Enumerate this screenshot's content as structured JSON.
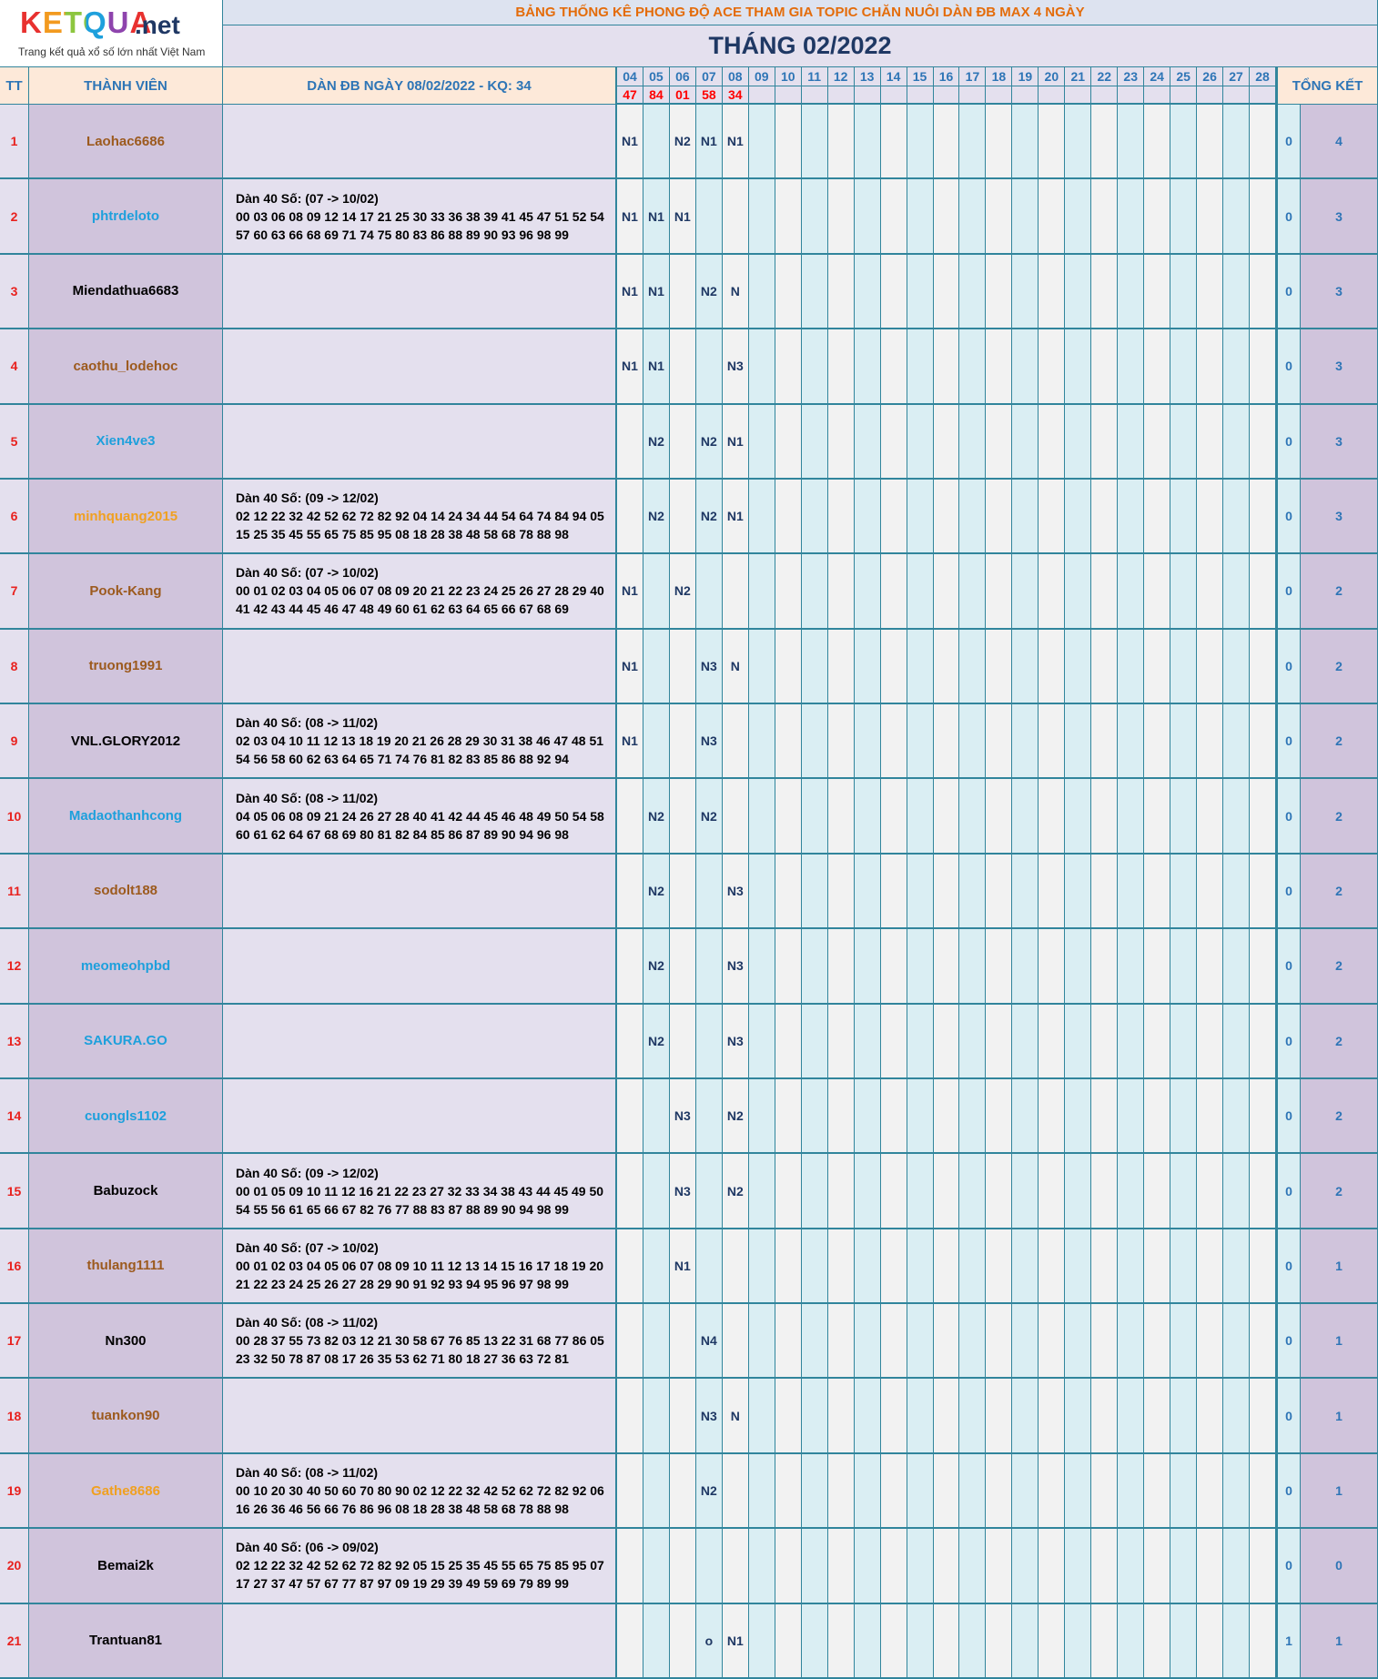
{
  "header": {
    "logo_brand": "KETQUA",
    "logo_suffix": ".net",
    "logo_tagline": "Trang kết quả xổ số lớn nhất Việt Nam",
    "title": "BẢNG THỐNG KÊ PHONG ĐỘ ACE THAM GIA TOPIC CHĂN NUÔI DÀN ĐB MAX 4 NGÀY",
    "month": "THÁNG 02/2022"
  },
  "table": {
    "columns": {
      "tt": "TT",
      "member": "THÀNH VIÊN",
      "dan": "DÀN ĐB NGÀY 08/02/2022 - KQ: 34",
      "total": "TỔNG KẾT"
    },
    "days": [
      "04",
      "05",
      "06",
      "07",
      "08",
      "09",
      "10",
      "11",
      "12",
      "13",
      "14",
      "15",
      "16",
      "17",
      "18",
      "19",
      "20",
      "21",
      "22",
      "23",
      "24",
      "25",
      "26",
      "27",
      "28"
    ],
    "results": [
      "47",
      "84",
      "01",
      "58",
      "34"
    ],
    "rows": [
      {
        "tt": 1,
        "member": "Laohac6686",
        "color": "#9c5a1e",
        "dan": null,
        "marks": [
          "N1",
          null,
          "N2",
          "N1",
          "N1"
        ],
        "totals": [
          0,
          4
        ]
      },
      {
        "tt": 2,
        "member": "phtrdeloto",
        "color": "#1ea0dc",
        "dan": [
          "Dàn 40 Số: (07 -> 10/02)",
          "00 03 06 08 09 12 14 17 21 25 30 33 36 38 39 41 45 47 51 52 54",
          "57 60 63 66 68 69 71 74 75 80 83 86 88 89 90 93 96 98 99"
        ],
        "marks": [
          "N1",
          "N1",
          "N1",
          null,
          null
        ],
        "totals": [
          0,
          3
        ]
      },
      {
        "tt": 3,
        "member": "Miendathua6683",
        "color": "#000000",
        "dan": null,
        "marks": [
          "N1",
          "N1",
          null,
          "N2",
          "N"
        ],
        "totals": [
          0,
          3
        ]
      },
      {
        "tt": 4,
        "member": "caothu_lodehoc",
        "color": "#9c5a1e",
        "dan": null,
        "marks": [
          "N1",
          "N1",
          null,
          null,
          "N3"
        ],
        "totals": [
          0,
          3
        ]
      },
      {
        "tt": 5,
        "member": "Xien4ve3",
        "color": "#1ea0dc",
        "dan": null,
        "marks": [
          null,
          "N2",
          null,
          "N2",
          "N1"
        ],
        "totals": [
          0,
          3
        ]
      },
      {
        "tt": 6,
        "member": "minhquang2015",
        "color": "#f0a020",
        "dan": [
          "Dàn 40 Số: (09 -> 12/02)",
          "02 12 22 32 42 52 62 72 82 92 04 14 24 34 44 54 64 74 84 94 05",
          "15 25 35 45 55 65 75 85 95 08 18 28 38 48 58 68 78 88 98"
        ],
        "marks": [
          null,
          "N2",
          null,
          "N2",
          "N1"
        ],
        "totals": [
          0,
          3
        ]
      },
      {
        "tt": 7,
        "member": "Pook-Kang",
        "color": "#9c5a1e",
        "dan": [
          "Dàn 40 Số: (07 -> 10/02)",
          "00 01 02 03 04 05 06 07 08 09 20 21 22 23 24 25 26 27 28 29 40",
          "41 42 43 44 45 46 47 48 49 60 61 62 63 64 65 66 67 68 69"
        ],
        "marks": [
          "N1",
          null,
          "N2",
          null,
          null
        ],
        "totals": [
          0,
          2
        ]
      },
      {
        "tt": 8,
        "member": "truong1991",
        "color": "#9c5a1e",
        "dan": null,
        "marks": [
          "N1",
          null,
          null,
          "N3",
          "N"
        ],
        "totals": [
          0,
          2
        ]
      },
      {
        "tt": 9,
        "member": "VNL.GLORY2012",
        "color": "#000000",
        "dan": [
          "Dàn 40 Số: (08 -> 11/02)",
          "02 03 04 10 11 12 13 18 19 20 21 26 28 29 30 31 38 46 47 48 51",
          "54 56 58 60 62 63 64 65 71 74 76 81 82 83 85 86 88 92 94"
        ],
        "marks": [
          "N1",
          null,
          null,
          "N3",
          null
        ],
        "totals": [
          0,
          2
        ]
      },
      {
        "tt": 10,
        "member": "Madaothanhcong",
        "color": "#1ea0dc",
        "dan": [
          "Dàn 40 Số: (08 -> 11/02)",
          "04 05 06 08 09 21 24 26 27 28 40 41 42 44 45 46 48 49 50 54 58",
          "60 61 62 64 67 68 69 80 81 82 84 85 86 87 89 90 94 96 98"
        ],
        "marks": [
          null,
          "N2",
          null,
          "N2",
          null
        ],
        "totals": [
          0,
          2
        ]
      },
      {
        "tt": 11,
        "member": "sodolt188",
        "color": "#9c5a1e",
        "dan": null,
        "marks": [
          null,
          "N2",
          null,
          null,
          "N3"
        ],
        "totals": [
          0,
          2
        ]
      },
      {
        "tt": 12,
        "member": "meomeohpbd",
        "color": "#1ea0dc",
        "dan": null,
        "marks": [
          null,
          "N2",
          null,
          null,
          "N3"
        ],
        "totals": [
          0,
          2
        ]
      },
      {
        "tt": 13,
        "member": "SAKURA.GO",
        "color": "#1ea0dc",
        "dan": null,
        "marks": [
          null,
          "N2",
          null,
          null,
          "N3"
        ],
        "totals": [
          0,
          2
        ]
      },
      {
        "tt": 14,
        "member": "cuongls1102",
        "color": "#1ea0dc",
        "dan": null,
        "marks": [
          null,
          null,
          "N3",
          null,
          "N2"
        ],
        "totals": [
          0,
          2
        ]
      },
      {
        "tt": 15,
        "member": "Babuzock",
        "color": "#000000",
        "dan": [
          "Dàn 40 Số: (09 -> 12/02)",
          "00 01 05 09 10 11 12 16 21 22 23 27 32 33 34 38 43 44 45 49 50",
          "54 55 56 61 65 66 67 82 76 77 88 83 87 88 89 90 94 98 99"
        ],
        "marks": [
          null,
          null,
          "N3",
          null,
          "N2"
        ],
        "totals": [
          0,
          2
        ]
      },
      {
        "tt": 16,
        "member": "thulang1111",
        "color": "#9c5a1e",
        "dan": [
          "Dàn 40 Số: (07 -> 10/02)",
          "00 01 02 03 04 05 06 07 08 09 10 11 12 13 14 15 16 17 18 19 20",
          "21 22 23 24 25 26 27 28 29 90 91 92 93 94 95 96 97 98 99"
        ],
        "marks": [
          null,
          null,
          "N1",
          null,
          null
        ],
        "totals": [
          0,
          1
        ]
      },
      {
        "tt": 17,
        "member": "Nn300",
        "color": "#000000",
        "dan": [
          "Dàn 40 Số: (08 -> 11/02)",
          "00 28 37 55 73 82 03 12 21 30 58 67 76 85 13 22 31 68 77 86 05",
          "23 32 50 78 87 08 17 26 35 53 62 71 80 18 27 36 63 72 81"
        ],
        "marks": [
          null,
          null,
          null,
          "N4",
          null
        ],
        "totals": [
          0,
          1
        ]
      },
      {
        "tt": 18,
        "member": "tuankon90",
        "color": "#9c5a1e",
        "dan": null,
        "marks": [
          null,
          null,
          null,
          "N3",
          "N"
        ],
        "totals": [
          0,
          1
        ]
      },
      {
        "tt": 19,
        "member": "Gathe8686",
        "color": "#f0a020",
        "dan": [
          "Dàn 40 Số: (08 -> 11/02)",
          "00 10 20 30 40 50 60 70 80 90 02 12 22 32 42 52 62 72 82 92 06",
          "16 26 36 46 56 66 76 86 96 08 18 28 38 48 58 68 78 88 98"
        ],
        "marks": [
          null,
          null,
          null,
          "N2",
          null
        ],
        "totals": [
          0,
          1
        ]
      },
      {
        "tt": 20,
        "member": "Bemai2k",
        "color": "#000000",
        "dan": [
          "Dàn 40 Số: (06 -> 09/02)",
          "02 12 22 32 42 52 62 72 82 92 05 15 25 35 45 55 65 75 85 95 07",
          "17 27 37 47 57 67 77 87 97 09 19 29 39 49 59 69 79 89 99"
        ],
        "marks": [
          null,
          null,
          null,
          null,
          null
        ],
        "totals": [
          0,
          0
        ]
      },
      {
        "tt": 21,
        "member": "Trantuan81",
        "color": "#000000",
        "dan": null,
        "marks": [
          null,
          null,
          null,
          "o",
          "N1"
        ],
        "totals": [
          1,
          1
        ]
      }
    ]
  }
}
